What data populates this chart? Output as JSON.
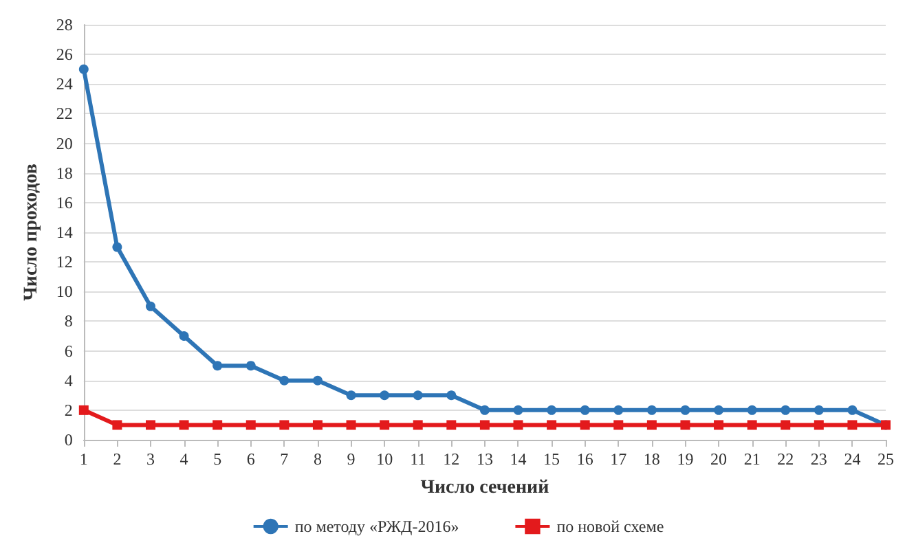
{
  "chart_data": {
    "type": "line",
    "xlabel": "Число сечений",
    "ylabel": "Число проходов",
    "x": [
      1,
      2,
      3,
      4,
      5,
      6,
      7,
      8,
      9,
      10,
      11,
      12,
      13,
      14,
      15,
      16,
      17,
      18,
      19,
      20,
      21,
      22,
      23,
      24,
      25
    ],
    "xlim": [
      1,
      25
    ],
    "xticks": [
      1,
      2,
      3,
      4,
      5,
      6,
      7,
      8,
      9,
      10,
      11,
      12,
      13,
      14,
      15,
      16,
      17,
      18,
      19,
      20,
      21,
      22,
      23,
      24,
      25
    ],
    "ylim": [
      0,
      28
    ],
    "yticks": [
      0,
      2,
      4,
      6,
      8,
      10,
      12,
      14,
      16,
      18,
      20,
      22,
      24,
      26,
      28
    ],
    "grid": "y",
    "legend": "bottom",
    "line_style": "solid",
    "series": [
      {
        "name": "по методу «РЖД-2016»",
        "color": "#2e75b6",
        "marker": "circle",
        "values": [
          25,
          13,
          9,
          7,
          5,
          5,
          4,
          4,
          3,
          3,
          3,
          3,
          2,
          2,
          2,
          2,
          2,
          2,
          2,
          2,
          2,
          2,
          2,
          2,
          1
        ]
      },
      {
        "name": "по новой схеме",
        "color": "#e31a1c",
        "marker": "square",
        "values": [
          2,
          1,
          1,
          1,
          1,
          1,
          1,
          1,
          1,
          1,
          1,
          1,
          1,
          1,
          1,
          1,
          1,
          1,
          1,
          1,
          1,
          1,
          1,
          1,
          1
        ]
      }
    ]
  }
}
